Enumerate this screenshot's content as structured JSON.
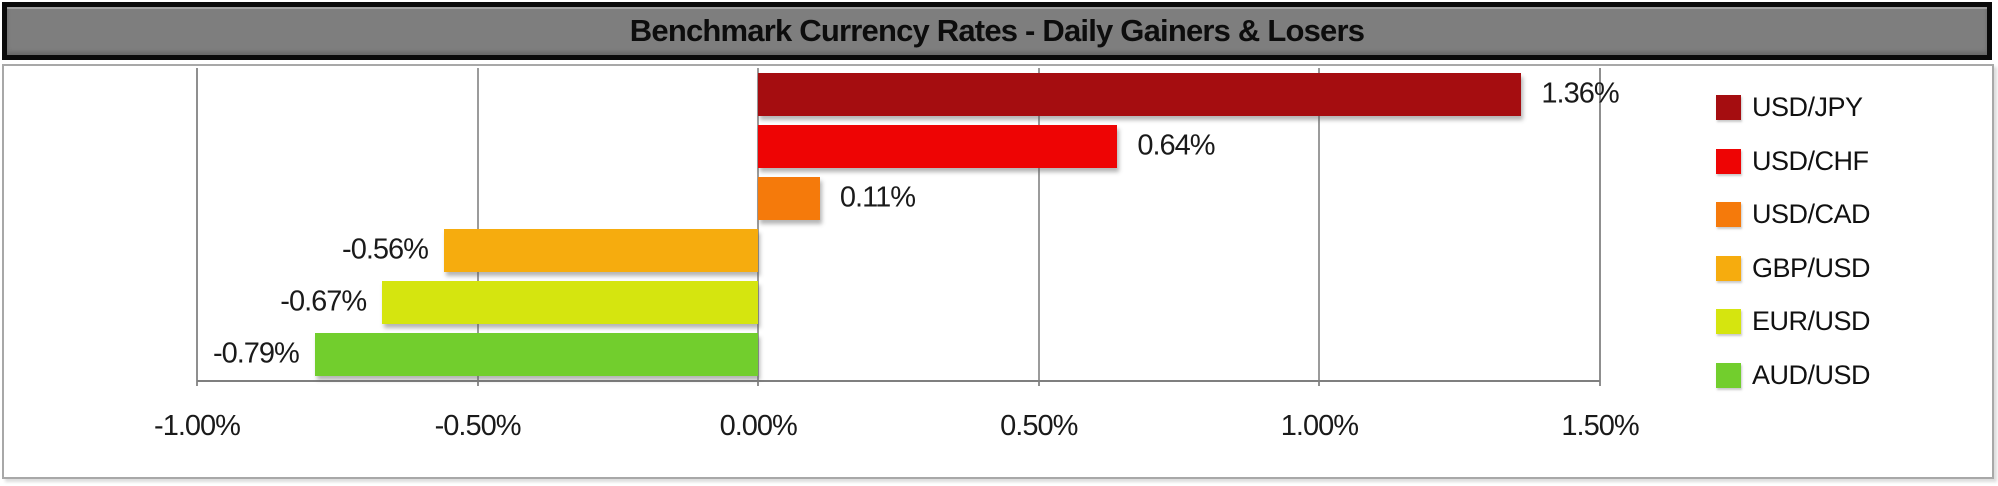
{
  "title": "Benchmark Currency Rates - Daily Gainers & Losers",
  "chart_data": {
    "type": "bar",
    "orientation": "horizontal",
    "title": "Benchmark Currency Rates - Daily Gainers & Losers",
    "series": [
      {
        "name": "USD/JPY",
        "value": 1.36,
        "label": "1.36%",
        "color": "#A50D10"
      },
      {
        "name": "USD/CHF",
        "value": 0.64,
        "label": "0.64%",
        "color": "#EE0404"
      },
      {
        "name": "USD/CAD",
        "value": 0.11,
        "label": "0.11%",
        "color": "#F57A0B"
      },
      {
        "name": "GBP/USD",
        "value": -0.56,
        "label": "-0.56%",
        "color": "#F6AC0E"
      },
      {
        "name": "EUR/USD",
        "value": -0.67,
        "label": "-0.67%",
        "color": "#D5E50F"
      },
      {
        "name": "AUD/USD",
        "value": -0.79,
        "label": "-0.79%",
        "color": "#72CE2D"
      }
    ],
    "x_axis": {
      "min": -1.0,
      "max": 1.5,
      "tick_values": [
        -1.0,
        -0.5,
        0.0,
        0.5,
        1.0,
        1.5
      ],
      "ticks": [
        "-1.00%",
        "-0.50%",
        "0.00%",
        "0.50%",
        "1.00%",
        "1.50%"
      ],
      "gridlines": true
    },
    "legend": {
      "position": "right",
      "entries": [
        "USD/JPY",
        "USD/CHF",
        "USD/CAD",
        "GBP/USD",
        "EUR/USD",
        "AUD/USD"
      ]
    }
  },
  "colors": {
    "title_bar_background": "#7e7e7e",
    "title_bar_border": "#0a0a0a",
    "chart_border": "#a8a8a8",
    "gridline": "#9b9b9b",
    "axis_line": "#7f7f7f",
    "text": "#1a1a1a",
    "plot_background": "#ffffff"
  }
}
